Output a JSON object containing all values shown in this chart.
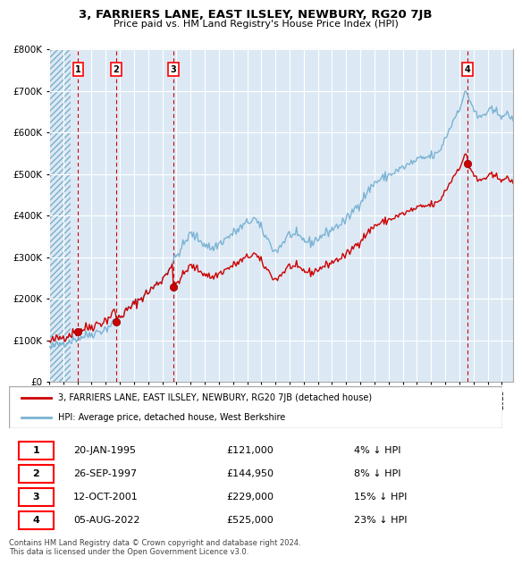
{
  "title": "3, FARRIERS LANE, EAST ILSLEY, NEWBURY, RG20 7JB",
  "subtitle": "Price paid vs. HM Land Registry's House Price Index (HPI)",
  "hpi_color": "#7ab3d4",
  "price_color": "#cc0000",
  "bg_color": "#dce9f5",
  "grid_color": "#ffffff",
  "dashed_line_color": "#cc0000",
  "ylim": [
    0,
    800000
  ],
  "yticks": [
    0,
    100000,
    200000,
    300000,
    400000,
    500000,
    600000,
    700000,
    800000
  ],
  "xlim_start": 1993.0,
  "xlim_end": 2025.8,
  "sale_dates_decimal": [
    1995.05,
    1997.73,
    2001.78,
    2022.59
  ],
  "sale_prices": [
    121000,
    144950,
    229000,
    525000
  ],
  "sale_labels": [
    "1",
    "2",
    "3",
    "4"
  ],
  "legend_label_price": "3, FARRIERS LANE, EAST ILSLEY, NEWBURY, RG20 7JB (detached house)",
  "legend_label_hpi": "HPI: Average price, detached house, West Berkshire",
  "table_data": [
    [
      "1",
      "20-JAN-1995",
      "£121,000",
      "4% ↓ HPI"
    ],
    [
      "2",
      "26-SEP-1997",
      "£144,950",
      "8% ↓ HPI"
    ],
    [
      "3",
      "12-OCT-2001",
      "£229,000",
      "15% ↓ HPI"
    ],
    [
      "4",
      "05-AUG-2022",
      "£525,000",
      "23% ↓ HPI"
    ]
  ],
  "footnote": "Contains HM Land Registry data © Crown copyright and database right 2024.\nThis data is licensed under the Open Government Licence v3.0.",
  "hatch_end": 1994.5
}
